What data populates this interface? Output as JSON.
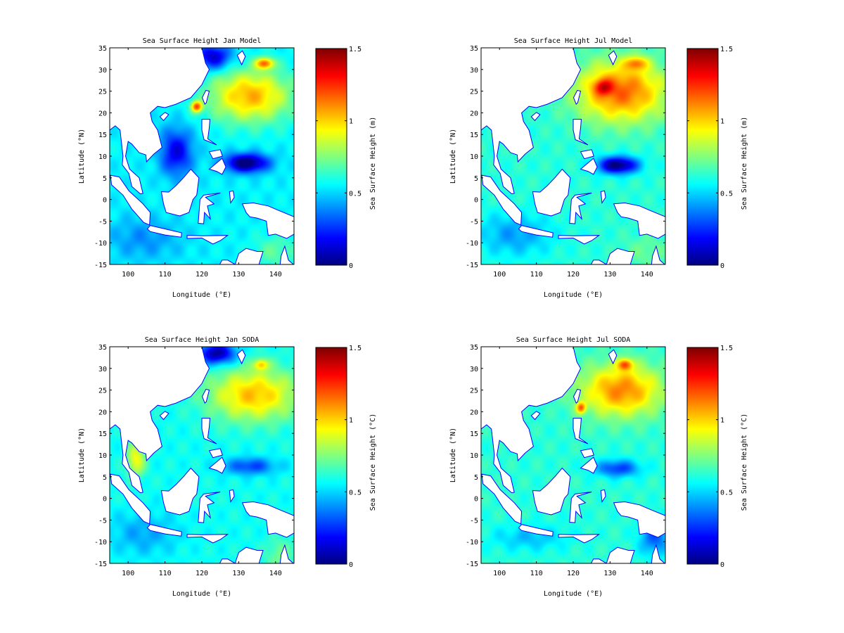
{
  "chart_data": [
    {
      "type": "heatmap",
      "title": "Sea Surface Height Jan Model",
      "xlabel": "Longitude (°E)",
      "ylabel": "Latitude (°N)",
      "colorbar_label": "Sea Surface Height (m)",
      "xlim": [
        95,
        145
      ],
      "ylim": [
        -15,
        35
      ],
      "clim": [
        0,
        1.5
      ],
      "xticks": [
        100,
        110,
        120,
        130,
        140
      ],
      "yticks": [
        -15,
        -10,
        -5,
        0,
        5,
        10,
        15,
        20,
        25,
        30,
        35
      ],
      "cticks": [
        "0",
        "0.5",
        "1",
        "1.5"
      ],
      "colormap": "jet",
      "base": 0.55,
      "features": [
        {
          "lon": 133,
          "lat": 24,
          "rlon": 11,
          "rlat": 6,
          "dv": 0.5
        },
        {
          "lon": 137,
          "lat": 31.5,
          "rlon": 2.5,
          "rlat": 1.3,
          "dv": 0.55
        },
        {
          "lon": 118.5,
          "lat": 21.5,
          "rlon": 1.5,
          "rlat": 1.3,
          "dv": 0.6
        },
        {
          "lon": 132,
          "lat": 8.5,
          "rlon": 6,
          "rlat": 2.2,
          "dv": -0.6
        },
        {
          "lon": 113,
          "lat": 11,
          "rlon": 4.5,
          "rlat": 5.5,
          "dv": -0.4
        },
        {
          "lon": 123,
          "lat": 33,
          "rlon": 5,
          "rlat": 3,
          "dv": -0.45
        },
        {
          "lon": 104,
          "lat": -9,
          "rlon": 10,
          "rlat": 5,
          "dv": -0.15
        },
        {
          "lon": 140,
          "lat": -12,
          "rlon": 6,
          "rlat": 4,
          "dv": 0.15
        }
      ]
    },
    {
      "type": "heatmap",
      "title": "Sea Surface Height Jul Model",
      "xlabel": "Longitude (°E)",
      "ylabel": "Latitude (°N)",
      "colorbar_label": "Sea Surface Height (m)",
      "xlim": [
        95,
        145
      ],
      "ylim": [
        -15,
        35
      ],
      "clim": [
        0,
        1.5
      ],
      "xticks": [
        100,
        110,
        120,
        130,
        140
      ],
      "yticks": [
        -15,
        -10,
        -5,
        0,
        5,
        10,
        15,
        20,
        25,
        30,
        35
      ],
      "cticks": [
        "0",
        "0.5",
        "1",
        "1.5"
      ],
      "colormap": "jet",
      "base": 0.62,
      "features": [
        {
          "lon": 133,
          "lat": 25,
          "rlon": 12,
          "rlat": 7,
          "dv": 0.55
        },
        {
          "lon": 128,
          "lat": 26,
          "rlon": 2.5,
          "rlat": 1.8,
          "dv": 0.35
        },
        {
          "lon": 137,
          "lat": 31.5,
          "rlon": 3,
          "rlat": 1.5,
          "dv": 0.35
        },
        {
          "lon": 132,
          "lat": 8,
          "rlon": 5.5,
          "rlat": 2,
          "dv": -0.65
        },
        {
          "lon": 104,
          "lat": -8,
          "rlon": 10,
          "rlat": 5,
          "dv": -0.2
        },
        {
          "lon": 140,
          "lat": -12,
          "rlon": 6,
          "rlat": 4,
          "dv": 0.1
        }
      ]
    },
    {
      "type": "heatmap",
      "title": "Sea Surface Height Jan SODA",
      "xlabel": "Longitude (°E)",
      "ylabel": "Latitude (°N)",
      "colorbar_label": "Sea Surface Height (°C)",
      "xlim": [
        95,
        145
      ],
      "ylim": [
        -15,
        35
      ],
      "clim": [
        0,
        1.5
      ],
      "xticks": [
        100,
        110,
        120,
        130,
        140
      ],
      "yticks": [
        -15,
        -10,
        -5,
        0,
        5,
        10,
        15,
        20,
        25,
        30,
        35
      ],
      "cticks": [
        "0",
        "0.5",
        "1",
        "1.5"
      ],
      "colormap": "jet",
      "base": 0.58,
      "features": [
        {
          "lon": 134,
          "lat": 24,
          "rlon": 12,
          "rlat": 6,
          "dv": 0.45
        },
        {
          "lon": 136,
          "lat": 31,
          "rlon": 2,
          "rlat": 1.3,
          "dv": 0.35
        },
        {
          "lon": 124,
          "lat": 33.5,
          "rlon": 5,
          "rlat": 2.5,
          "dv": -0.55
        },
        {
          "lon": 133,
          "lat": 7.5,
          "rlon": 7,
          "rlat": 2,
          "dv": -0.3
        },
        {
          "lon": 102,
          "lat": 9,
          "rlon": 2.5,
          "rlat": 4,
          "dv": 0.35
        },
        {
          "lon": 104,
          "lat": -8,
          "rlon": 9,
          "rlat": 5,
          "dv": -0.15
        },
        {
          "lon": 141,
          "lat": -13,
          "rlon": 4,
          "rlat": 4,
          "dv": 0.15
        }
      ]
    },
    {
      "type": "heatmap",
      "title": "Sea Surface Height Jul SODA",
      "xlabel": "Longitude (°E)",
      "ylabel": "Latitude (°N)",
      "colorbar_label": "Sea Surface Height (°C)",
      "xlim": [
        95,
        145
      ],
      "ylim": [
        -15,
        35
      ],
      "clim": [
        0,
        1.5
      ],
      "xticks": [
        100,
        110,
        120,
        130,
        140
      ],
      "yticks": [
        -15,
        -10,
        -5,
        0,
        5,
        10,
        15,
        20,
        25,
        30,
        35
      ],
      "cticks": [
        "0",
        "0.5",
        "1",
        "1.5"
      ],
      "colormap": "jet",
      "base": 0.62,
      "features": [
        {
          "lon": 133,
          "lat": 25,
          "rlon": 11,
          "rlat": 6,
          "dv": 0.5
        },
        {
          "lon": 134,
          "lat": 31,
          "rlon": 2,
          "rlat": 1.3,
          "dv": 0.45
        },
        {
          "lon": 122,
          "lat": 21,
          "rlon": 1.3,
          "rlat": 1.3,
          "dv": 0.45
        },
        {
          "lon": 132,
          "lat": 7,
          "rlon": 6,
          "rlat": 2,
          "dv": -0.35
        },
        {
          "lon": 142,
          "lat": -9,
          "rlon": 4,
          "rlat": 4,
          "dv": -0.3
        },
        {
          "lon": 108,
          "lat": -9,
          "rlon": 10,
          "rlat": 3,
          "dv": -0.15
        }
      ]
    }
  ],
  "land": [
    {
      "name": "asia-mainland",
      "coords": [
        [
          95,
          35
        ],
        [
          120,
          35
        ],
        [
          121,
          31.5
        ],
        [
          122,
          30
        ],
        [
          120,
          26.5
        ],
        [
          117,
          23.5
        ],
        [
          113,
          22
        ],
        [
          110,
          21.2
        ],
        [
          108,
          21.5
        ],
        [
          106,
          20
        ],
        [
          106.5,
          18
        ],
        [
          108,
          16
        ],
        [
          109.2,
          12
        ],
        [
          107,
          10.5
        ],
        [
          105,
          8.7
        ],
        [
          104.8,
          10.3
        ],
        [
          103,
          10.8
        ],
        [
          101,
          12.8
        ],
        [
          100,
          13.4
        ],
        [
          99.3,
          10
        ],
        [
          100.4,
          7
        ],
        [
          103,
          5
        ],
        [
          104,
          1.4
        ],
        [
          103.3,
          1.3
        ],
        [
          101,
          3
        ],
        [
          100.2,
          6
        ],
        [
          98.4,
          8
        ],
        [
          98.6,
          10
        ],
        [
          97.8,
          16
        ],
        [
          96.5,
          17
        ],
        [
          95,
          16
        ]
      ]
    },
    {
      "name": "hainan",
      "coords": [
        [
          108.6,
          19.1
        ],
        [
          110,
          20.1
        ],
        [
          111,
          19.6
        ],
        [
          109.6,
          18.2
        ]
      ]
    },
    {
      "name": "taiwan",
      "coords": [
        [
          120.8,
          22
        ],
        [
          120.1,
          23.5
        ],
        [
          121.1,
          25.2
        ],
        [
          122,
          25
        ],
        [
          121.2,
          22.3
        ]
      ]
    },
    {
      "name": "kyushu",
      "coords": [
        [
          129.6,
          33.3
        ],
        [
          130.8,
          31.1
        ],
        [
          131.8,
          33
        ],
        [
          131,
          34.3
        ]
      ]
    },
    {
      "name": "sumatra",
      "coords": [
        [
          95.2,
          5.6
        ],
        [
          97.6,
          5.2
        ],
        [
          100.2,
          2
        ],
        [
          104,
          -1
        ],
        [
          106,
          -3
        ],
        [
          105.8,
          -5.9
        ],
        [
          104.2,
          -5.3
        ],
        [
          101,
          -2.2
        ],
        [
          98.6,
          1
        ],
        [
          95.5,
          3.4
        ]
      ]
    },
    {
      "name": "java",
      "coords": [
        [
          105.2,
          -6.8
        ],
        [
          106,
          -6
        ],
        [
          110,
          -6.8
        ],
        [
          114.5,
          -7.7
        ],
        [
          114.4,
          -8.7
        ],
        [
          110,
          -8.2
        ],
        [
          106,
          -7.4
        ]
      ]
    },
    {
      "name": "borneo",
      "coords": [
        [
          109,
          1.8
        ],
        [
          109.6,
          -1
        ],
        [
          110.3,
          -3
        ],
        [
          114,
          -3.8
        ],
        [
          116.5,
          -3
        ],
        [
          117.6,
          0
        ],
        [
          118.6,
          1
        ],
        [
          119.2,
          5
        ],
        [
          117,
          7
        ],
        [
          115,
          5
        ],
        [
          113,
          3.2
        ],
        [
          111,
          1.7
        ]
      ]
    },
    {
      "name": "sulawesi",
      "coords": [
        [
          119,
          -5.5
        ],
        [
          119.5,
          0
        ],
        [
          120.5,
          1
        ],
        [
          125,
          1.5
        ],
        [
          121,
          0.5
        ],
        [
          123.3,
          -1
        ],
        [
          121.5,
          -1.5
        ],
        [
          122.3,
          -4.5
        ],
        [
          120.7,
          -3
        ],
        [
          120.5,
          -5.6
        ]
      ]
    },
    {
      "name": "luzon",
      "coords": [
        [
          120,
          18.5
        ],
        [
          122.2,
          18.5
        ],
        [
          122,
          16.5
        ],
        [
          121.6,
          14
        ],
        [
          124,
          12.6
        ],
        [
          120.6,
          13.8
        ],
        [
          120,
          16
        ]
      ]
    },
    {
      "name": "visayas",
      "coords": [
        [
          122,
          11
        ],
        [
          125,
          11.5
        ],
        [
          125.6,
          10
        ],
        [
          123,
          9.4
        ]
      ]
    },
    {
      "name": "mindanao",
      "coords": [
        [
          122,
          7
        ],
        [
          125.5,
          9.5
        ],
        [
          126.5,
          7.5
        ],
        [
          125.5,
          5.8
        ],
        [
          124,
          6.5
        ]
      ]
    },
    {
      "name": "halmahera",
      "coords": [
        [
          127.5,
          1.8
        ],
        [
          128.5,
          2
        ],
        [
          128.8,
          0.5
        ],
        [
          127.8,
          -0.8
        ]
      ]
    },
    {
      "name": "new-guinea",
      "coords": [
        [
          131,
          -1
        ],
        [
          134,
          -0.8
        ],
        [
          138,
          -1.5
        ],
        [
          141,
          -2.6
        ],
        [
          145,
          -4
        ],
        [
          145,
          -8
        ],
        [
          143,
          -9
        ],
        [
          140,
          -8
        ],
        [
          138,
          -8.3
        ],
        [
          137.5,
          -5
        ],
        [
          135,
          -4.3
        ],
        [
          133,
          -4
        ],
        [
          132,
          -3
        ]
      ]
    },
    {
      "name": "timor-flores",
      "coords": [
        [
          116,
          -8.3
        ],
        [
          120,
          -8.4
        ],
        [
          127,
          -8.3
        ],
        [
          125,
          -9.5
        ],
        [
          123,
          -10.3
        ],
        [
          120,
          -8.9
        ],
        [
          116,
          -9
        ]
      ]
    },
    {
      "name": "australia",
      "coords": [
        [
          122,
          -17
        ],
        [
          124.5,
          -15.5
        ],
        [
          125.5,
          -14
        ],
        [
          127,
          -14
        ],
        [
          129,
          -15
        ],
        [
          130,
          -12.5
        ],
        [
          132,
          -11.3
        ],
        [
          135,
          -12
        ],
        [
          136.6,
          -12
        ],
        [
          136,
          -13.6
        ],
        [
          135.5,
          -15
        ],
        [
          138,
          -16.6
        ],
        [
          141,
          -17
        ],
        [
          141.5,
          -13
        ],
        [
          142.5,
          -10.8
        ],
        [
          143.5,
          -14
        ],
        [
          145.5,
          -15.5
        ],
        [
          145.5,
          -17
        ]
      ]
    }
  ],
  "colors": {
    "land_fill": "#ffffff",
    "coastline": "#0000ff",
    "axis": "#000000"
  }
}
